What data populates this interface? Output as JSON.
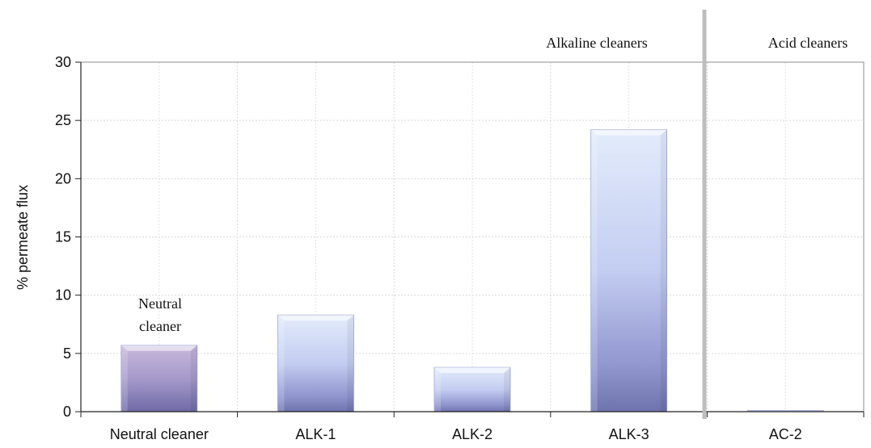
{
  "chart_data": {
    "type": "bar",
    "title": "",
    "xlabel": "",
    "ylabel": "% permeate flux",
    "ylim": [
      0,
      30
    ],
    "yticks": [
      0,
      5,
      10,
      15,
      20,
      25,
      30
    ],
    "grid": true,
    "categories": [
      "Neutral cleaner",
      "ALK-1",
      "ALK-2",
      "ALK-3",
      "AC-2"
    ],
    "values": [
      5.7,
      8.3,
      3.8,
      24.2,
      0.1
    ],
    "bar_colors": [
      "#9a8ec0",
      "#c5cff2",
      "#c5cff2",
      "#c5cff2",
      "#c5cff2"
    ],
    "annotations": {
      "neutral": [
        "Neutral",
        "cleaner"
      ],
      "alkaline": "Alkaline cleaners",
      "acid": "Acid cleaners"
    }
  }
}
